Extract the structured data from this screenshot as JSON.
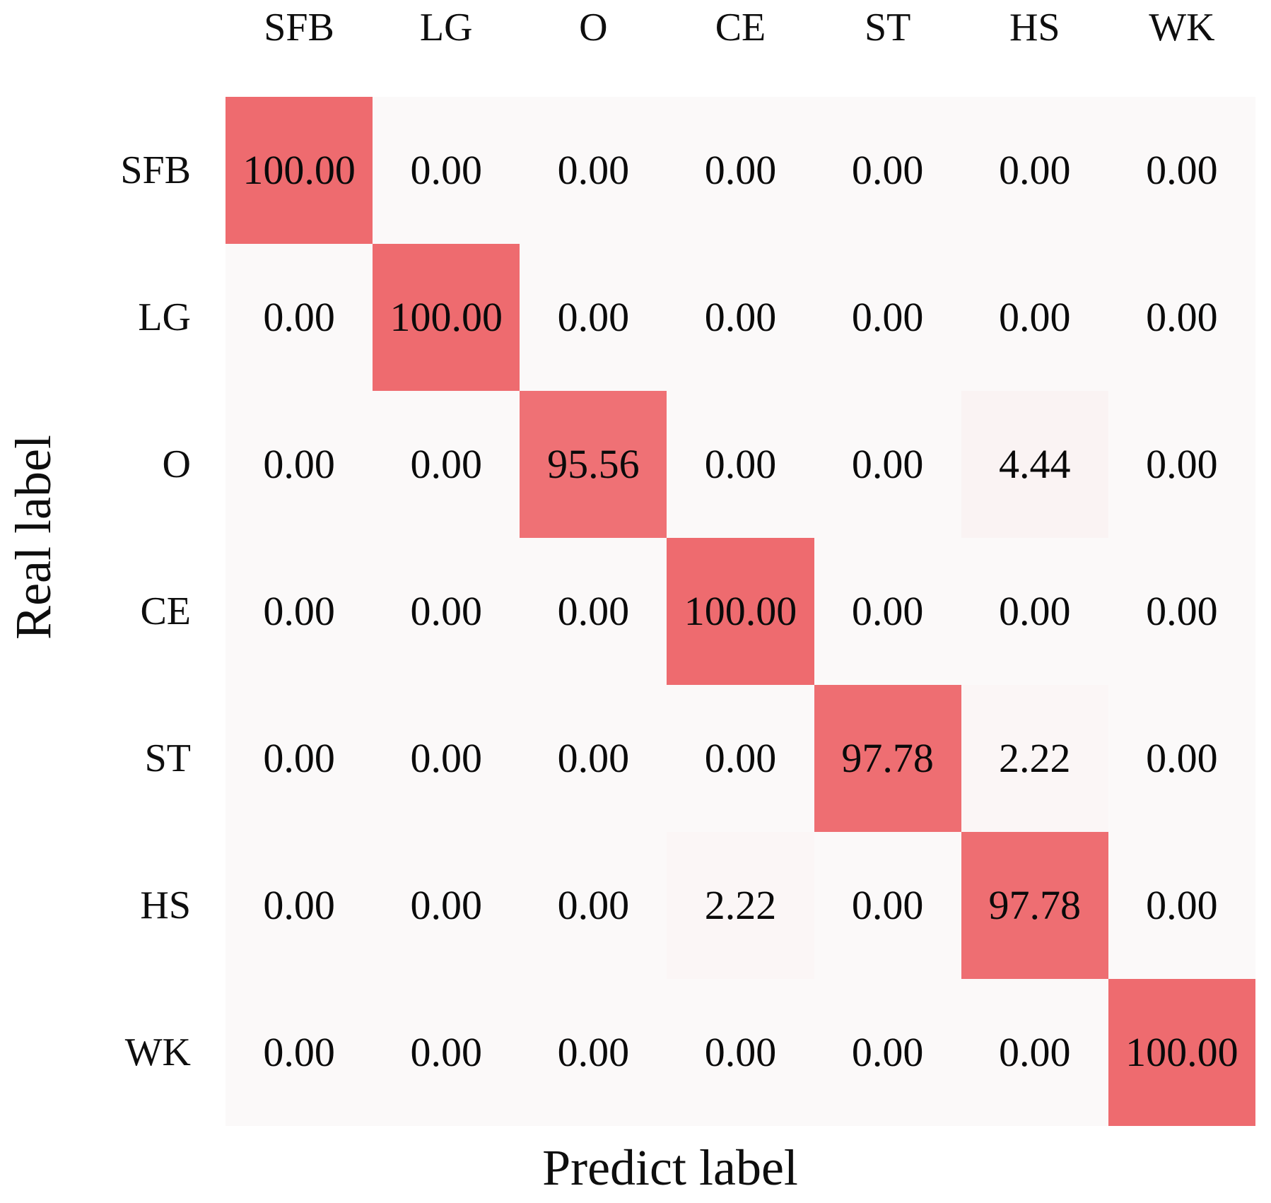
{
  "chart_data": {
    "type": "heatmap",
    "subtype": "confusion-matrix",
    "xlabel": "Predict label",
    "ylabel": "Real label",
    "columns": [
      "SFB",
      "LG",
      "O",
      "CE",
      "ST",
      "HS",
      "WK"
    ],
    "rows": [
      "SFB",
      "LG",
      "O",
      "CE",
      "ST",
      "HS",
      "WK"
    ],
    "values": [
      [
        100.0,
        0.0,
        0.0,
        0.0,
        0.0,
        0.0,
        0.0
      ],
      [
        0.0,
        100.0,
        0.0,
        0.0,
        0.0,
        0.0,
        0.0
      ],
      [
        0.0,
        0.0,
        95.56,
        0.0,
        0.0,
        4.44,
        0.0
      ],
      [
        0.0,
        0.0,
        0.0,
        100.0,
        0.0,
        0.0,
        0.0
      ],
      [
        0.0,
        0.0,
        0.0,
        0.0,
        97.78,
        2.22,
        0.0
      ],
      [
        0.0,
        0.0,
        0.0,
        2.22,
        0.0,
        97.78,
        0.0
      ],
      [
        0.0,
        0.0,
        0.0,
        0.0,
        0.0,
        0.0,
        100.0
      ]
    ],
    "value_decimals": 2,
    "value_range": [
      0,
      100
    ],
    "colormap": {
      "min_color": "#fbf9f9",
      "max_color": "#ee6b6f"
    },
    "cell_text_color": "#0a0a0a",
    "grid": false,
    "legend": "none"
  }
}
